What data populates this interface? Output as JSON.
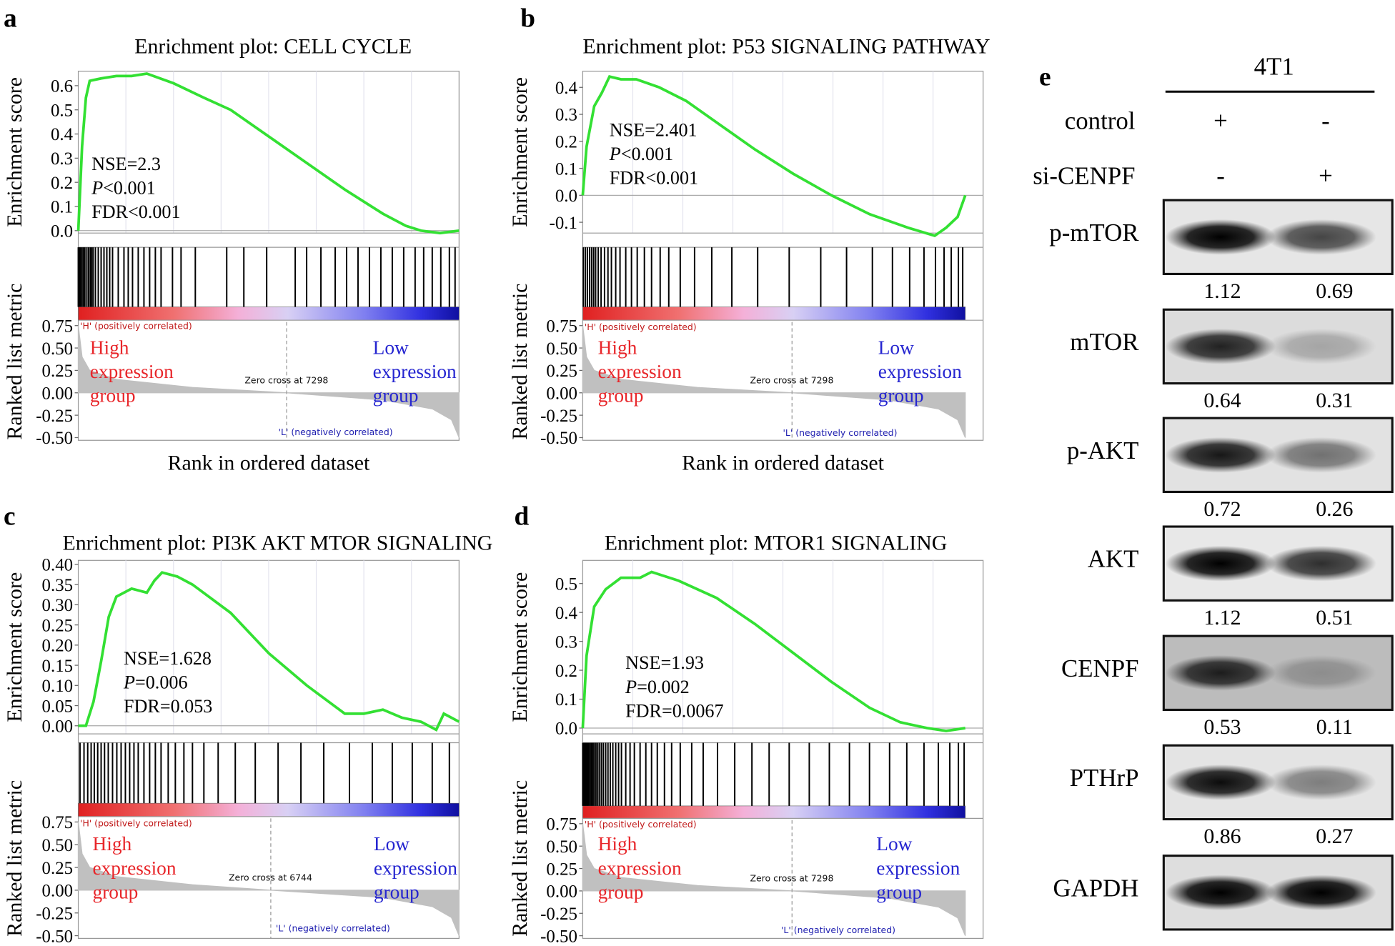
{
  "chart_data": [
    {
      "type": "gsea",
      "panel": "a",
      "title": "Enrichment plot: CELL CYCLE",
      "ylabel": "Enrichment score",
      "xlim": [
        0,
        13340
      ],
      "ylim": [
        -0.01,
        0.66
      ],
      "yticks": [
        {
          "value": 0,
          "label": "0.0"
        },
        0.1,
        0.2,
        0.3,
        0.4,
        0.5,
        0.6
      ],
      "x": [
        0,
        133,
        267,
        400,
        800,
        1334,
        1868,
        2401,
        3335,
        4402,
        5336,
        6670,
        8004,
        9338,
        10672,
        11472,
        12006,
        12673,
        13340
      ],
      "values": [
        0,
        0.35,
        0.55,
        0.62,
        0.63,
        0.64,
        0.64,
        0.65,
        0.61,
        0.55,
        0.5,
        0.39,
        0.28,
        0.17,
        0.07,
        0.02,
        0,
        -0.01,
        0
      ],
      "color": "#33e033",
      "hits": [
        0,
        40,
        80,
        130,
        180,
        230,
        300,
        360,
        420,
        470,
        520,
        600,
        700,
        800,
        900,
        1000,
        1100,
        1200,
        1400,
        1600,
        1750,
        1900,
        2100,
        2300,
        2500,
        2700,
        2900,
        3300,
        3600,
        4100,
        5200,
        5800,
        6600,
        7600,
        8000,
        8500,
        9000,
        9400,
        9800,
        10200,
        10600,
        11000,
        11400,
        11800,
        12100,
        12400,
        12700,
        13000,
        13200
      ],
      "stats": [
        "NSE=2.3",
        "P<0.001",
        "FDR<0.001"
      ],
      "metric": {
        "ylabel": "Ranked list metric",
        "ylim": [
          -0.53,
          0.79
        ],
        "yticks": [
          {
            "value": -0.5,
            "label": "-0.50"
          },
          -0.25,
          {
            "value": 0,
            "label": "0.00"
          },
          0.25,
          {
            "value": 0.5,
            "label": "0.50"
          },
          0.75
        ],
        "x": [
          0,
          133,
          400,
          1334,
          4002,
          7298,
          10672,
          12406,
          13073,
          13340
        ],
        "values": [
          0.75,
          0.4,
          0.25,
          0.15,
          0.06,
          0,
          -0.08,
          -0.18,
          -0.3,
          -0.5
        ],
        "color": "#c0c0c0"
      },
      "pos_label": "'H' (positively correlated)",
      "neg_label": "'L' (negatively correlated)",
      "zero_cross": "Zero cross at 7298",
      "high_group": [
        "High",
        "expression",
        "group"
      ],
      "low_group": [
        "Low",
        "expression",
        "group"
      ],
      "xlabel": "Rank in ordered dataset"
    },
    {
      "type": "gsea",
      "panel": "b",
      "title": "Enrichment plot: P53 SIGNALING PATHWAY",
      "ylabel": "Enrichment score",
      "xlim": [
        0,
        13340
      ],
      "ylim": [
        -0.14,
        0.46
      ],
      "yticks": [
        -0.1,
        {
          "value": 0,
          "label": "0.0"
        },
        0.1,
        0.2,
        0.3,
        0.4
      ],
      "x": [
        0,
        133,
        400,
        667,
        934,
        1334,
        1868,
        2668,
        3602,
        4669,
        6003,
        7337,
        8671,
        10005,
        11339,
        12273,
        12673,
        13073,
        13340
      ],
      "values": [
        0,
        0.18,
        0.33,
        0.38,
        0.44,
        0.43,
        0.43,
        0.4,
        0.35,
        0.27,
        0.17,
        0.08,
        0,
        -0.07,
        -0.12,
        -0.15,
        -0.12,
        -0.08,
        0
      ],
      "color": "#33e033",
      "hits": [
        20,
        90,
        160,
        240,
        310,
        380,
        450,
        540,
        640,
        760,
        880,
        1000,
        1150,
        1300,
        1500,
        1700,
        1900,
        2150,
        2400,
        2700,
        3000,
        3400,
        3900,
        4500,
        5200,
        6100,
        7200,
        8300,
        9200,
        10100,
        10800,
        11400,
        11900,
        12300,
        12600,
        12850,
        13100,
        13250
      ],
      "stats": [
        "NSE=2.401",
        "P<0.001",
        "FDR<0.001"
      ],
      "metric": {
        "ylabel": "Ranked list metric",
        "ylim": [
          -0.53,
          0.79
        ],
        "yticks": [
          {
            "value": -0.5,
            "label": "-0.50"
          },
          -0.25,
          {
            "value": 0,
            "label": "0.00"
          },
          0.25,
          {
            "value": 0.5,
            "label": "0.50"
          },
          0.75
        ],
        "x": [
          0,
          133,
          400,
          1334,
          4002,
          7298,
          10672,
          12406,
          13073,
          13340
        ],
        "values": [
          0.75,
          0.4,
          0.25,
          0.15,
          0.06,
          0,
          -0.08,
          -0.18,
          -0.3,
          -0.5
        ],
        "color": "#c0c0c0"
      },
      "pos_label": "'H' (positively correlated)",
      "neg_label": "'L' (negatively correlated)",
      "zero_cross": "Zero cross at 7298",
      "high_group": [
        "High",
        "expression",
        "group"
      ],
      "low_group": [
        "Low",
        "expression",
        "group"
      ],
      "xlabel": "Rank in ordered dataset"
    },
    {
      "type": "gsea",
      "panel": "c",
      "title": "Enrichment plot: PI3K AKT MTOR SIGNALING",
      "ylabel": "Enrichment score",
      "xlim": [
        0,
        13340
      ],
      "ylim": [
        -0.02,
        0.41
      ],
      "yticks": [
        {
          "value": 0,
          "label": "0.00"
        },
        0.05,
        {
          "value": 0.1,
          "label": "0.10"
        },
        0.15,
        {
          "value": 0.2,
          "label": "0.20"
        },
        0.25,
        {
          "value": 0.3,
          "label": "0.30"
        },
        0.35,
        {
          "value": 0.4,
          "label": "0.40"
        }
      ],
      "x": [
        0,
        267,
        534,
        800,
        1067,
        1334,
        1868,
        2401,
        2668,
        2935,
        3468,
        4002,
        5336,
        6670,
        8004,
        9338,
        10005,
        10672,
        11339,
        12006,
        12540,
        12806,
        13340
      ],
      "values": [
        0,
        0,
        0.06,
        0.16,
        0.27,
        0.32,
        0.34,
        0.33,
        0.36,
        0.38,
        0.37,
        0.35,
        0.28,
        0.18,
        0.1,
        0.03,
        0.03,
        0.04,
        0.02,
        0.01,
        -0.01,
        0.03,
        0.01
      ],
      "color": "#33e033",
      "hits": [
        60,
        200,
        330,
        450,
        560,
        680,
        800,
        920,
        1050,
        1200,
        1350,
        1500,
        1650,
        1800,
        1950,
        2100,
        2300,
        2500,
        2700,
        2900,
        3150,
        3400,
        3700,
        4000,
        4400,
        4900,
        5500,
        6200,
        7000,
        7800,
        8600,
        9500,
        10300,
        11000,
        11700,
        12400,
        13000
      ],
      "stats": [
        "NSE=1.628",
        "P=0.006",
        "FDR=0.053"
      ],
      "metric": {
        "ylabel": "Ranked list metric",
        "ylim": [
          -0.53,
          0.79
        ],
        "yticks": [
          {
            "value": -0.5,
            "label": "-0.50"
          },
          -0.25,
          {
            "value": 0,
            "label": "0.00"
          },
          0.25,
          {
            "value": 0.5,
            "label": "0.50"
          },
          0.75
        ],
        "x": [
          0,
          133,
          400,
          1334,
          4002,
          6744,
          10672,
          12406,
          13073,
          13340
        ],
        "values": [
          0.75,
          0.4,
          0.25,
          0.15,
          0.06,
          0,
          -0.08,
          -0.18,
          -0.3,
          -0.5
        ],
        "color": "#c0c0c0"
      },
      "pos_label": "'H' (positively correlated)",
      "neg_label": "'L' (negatively correlated)",
      "zero_cross": "Zero cross at 6744",
      "high_group": [
        "High",
        "expression",
        "group"
      ],
      "low_group": [
        "Low",
        "expression",
        "group"
      ]
    },
    {
      "type": "gsea",
      "panel": "d",
      "title": "Enrichment plot: MTOR1 SIGNALING",
      "ylabel": "Enrichment score",
      "xlim": [
        0,
        13340
      ],
      "ylim": [
        -0.02,
        0.58
      ],
      "yticks": [
        {
          "value": 0,
          "label": "0.0"
        },
        0.1,
        0.2,
        0.3,
        0.4,
        0.5
      ],
      "x": [
        0,
        133,
        400,
        800,
        1334,
        2001,
        2401,
        3335,
        4669,
        6003,
        7337,
        8671,
        10005,
        11072,
        12006,
        12673,
        13340
      ],
      "values": [
        0,
        0.25,
        0.42,
        0.48,
        0.52,
        0.52,
        0.54,
        0.51,
        0.45,
        0.36,
        0.26,
        0.16,
        0.07,
        0.02,
        0,
        -0.01,
        0
      ],
      "color": "#33e033",
      "hits": [
        0,
        40,
        80,
        120,
        160,
        200,
        250,
        300,
        350,
        400,
        460,
        520,
        580,
        650,
        720,
        800,
        880,
        960,
        1050,
        1150,
        1250,
        1350,
        1500,
        1650,
        1800,
        2000,
        2200,
        2400,
        2600,
        2850,
        3100,
        3400,
        3800,
        4200,
        4700,
        5300,
        5900,
        6500,
        7200,
        7900,
        8600,
        9300,
        10000,
        10700,
        11300,
        11900,
        12400,
        12800,
        13100,
        13300
      ],
      "stats": [
        "NSE=1.93",
        "P=0.002",
        "FDR=0.0067"
      ],
      "metric": {
        "ylabel": "Ranked list metric",
        "ylim": [
          -0.53,
          0.79
        ],
        "yticks": [
          {
            "value": -0.5,
            "label": "-0.50"
          },
          -0.25,
          {
            "value": 0,
            "label": "0.00"
          },
          0.25,
          {
            "value": 0.5,
            "label": "0.50"
          },
          0.75
        ],
        "x": [
          0,
          133,
          400,
          1334,
          4002,
          7298,
          10672,
          12406,
          13073,
          13340
        ],
        "values": [
          0.75,
          0.4,
          0.25,
          0.15,
          0.06,
          0,
          -0.08,
          -0.18,
          -0.3,
          -0.5
        ],
        "color": "#c0c0c0"
      },
      "pos_label": "'H' (positively correlated)",
      "neg_label": "'L' (negatively correlated)",
      "zero_cross": "Zero cross at 7298",
      "high_group": [
        "High",
        "expression",
        "group"
      ],
      "low_group": [
        "Low",
        "expression",
        "group"
      ]
    }
  ],
  "blot": {
    "panel": "e",
    "cell_line": "4T1",
    "conditions": [
      {
        "name": "control",
        "marks": [
          "+",
          "-"
        ]
      },
      {
        "name": "si-CENPF",
        "marks": [
          "-",
          "+"
        ]
      }
    ],
    "bands": [
      {
        "name": "p-mTOR",
        "values": [
          1.12,
          0.69
        ]
      },
      {
        "name": "mTOR",
        "values": [
          0.64,
          0.31
        ]
      },
      {
        "name": "p-AKT",
        "values": [
          0.72,
          0.26
        ]
      },
      {
        "name": "AKT",
        "values": [
          1.12,
          0.51
        ]
      },
      {
        "name": "CENPF",
        "values": [
          0.53,
          0.11
        ]
      },
      {
        "name": "PTHrP",
        "values": [
          0.86,
          0.27
        ]
      },
      {
        "name": "GAPDH"
      }
    ]
  }
}
